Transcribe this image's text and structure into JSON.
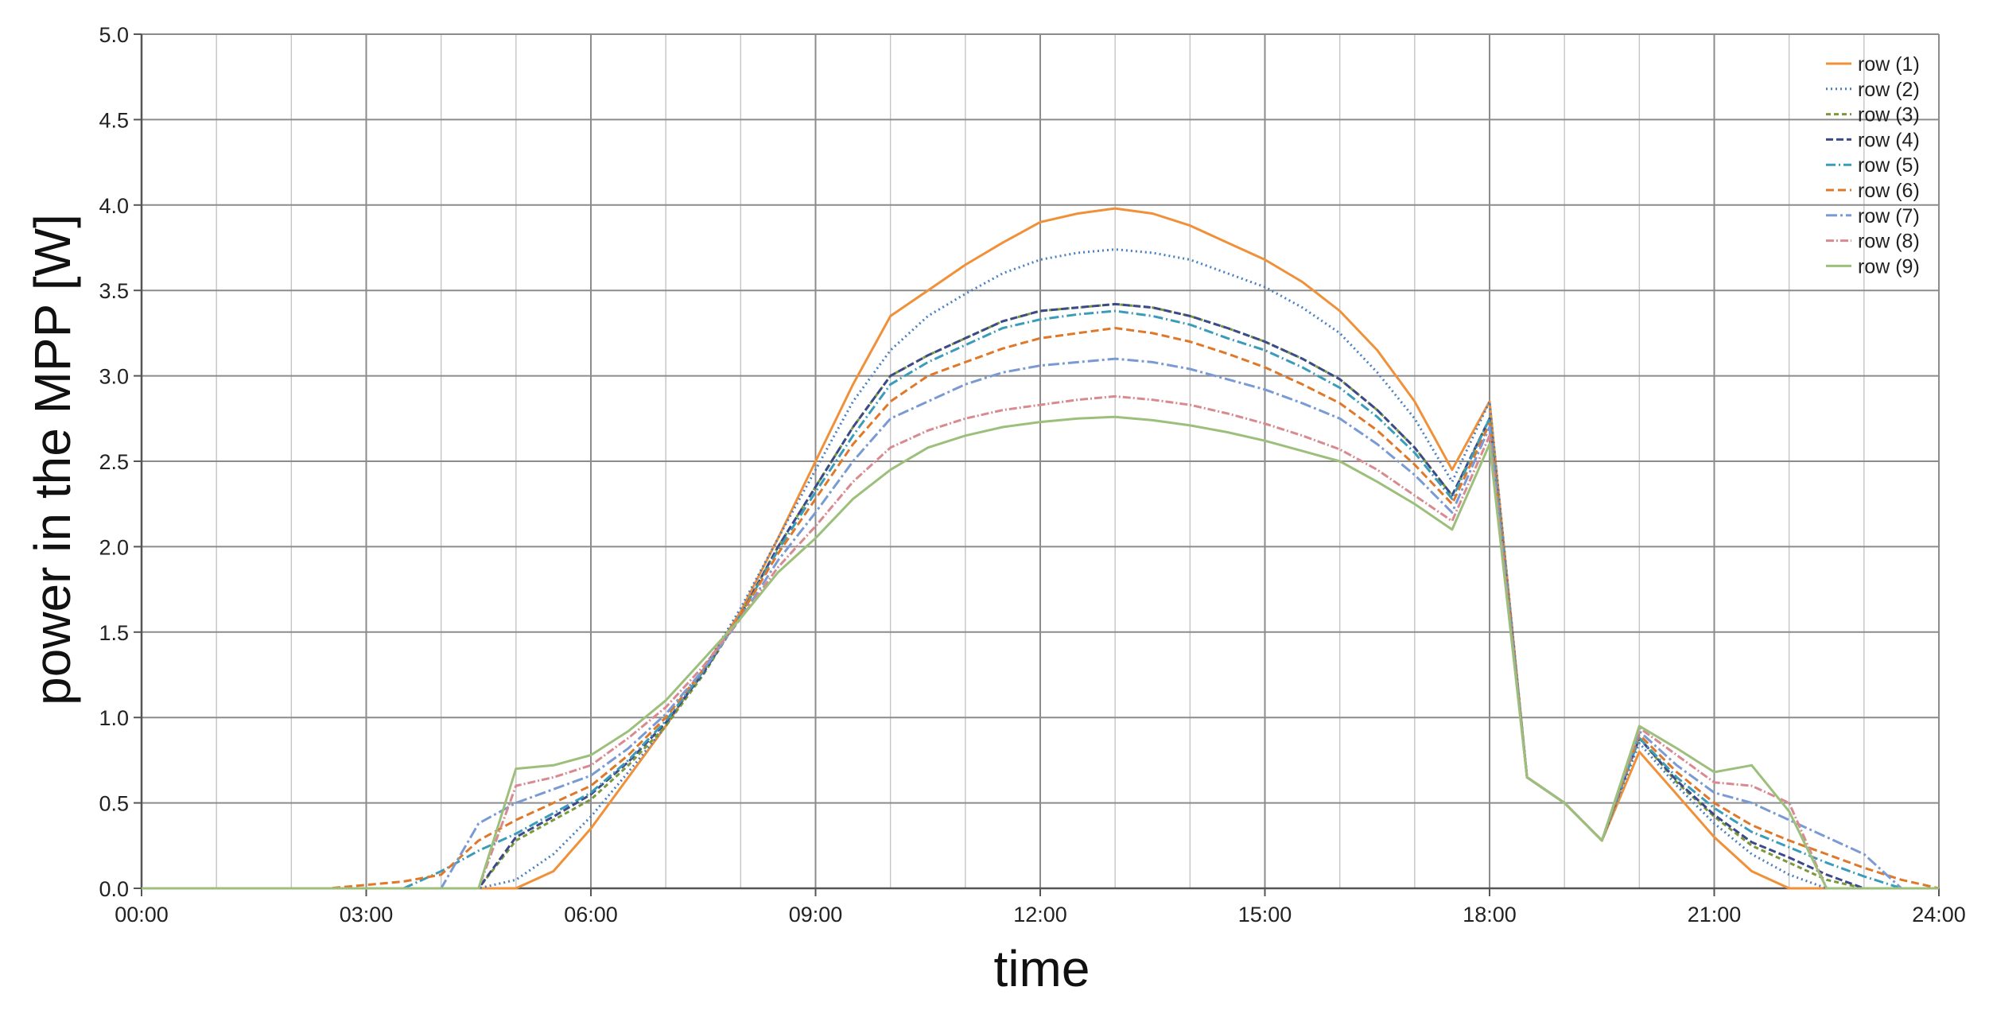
{
  "chart_data": {
    "type": "line",
    "xlabel": "time",
    "ylabel": "power in the MPP [W]",
    "x_unit": "hours",
    "xlim": [
      0,
      24
    ],
    "ylim": [
      0,
      5
    ],
    "x_tick_values": [
      0,
      3,
      6,
      9,
      12,
      15,
      18,
      21,
      24
    ],
    "x_tick_labels": [
      "00:00",
      "03:00",
      "06:00",
      "09:00",
      "12:00",
      "15:00",
      "18:00",
      "21:00",
      "24:00"
    ],
    "y_tick_values": [
      0,
      0.5,
      1,
      1.5,
      2,
      2.5,
      3,
      3.5,
      4,
      4.5,
      5
    ],
    "y_tick_labels": [
      "0.0",
      "0.5",
      "1.0",
      "1.5",
      "2.0",
      "2.5",
      "3.0",
      "3.5",
      "4.0",
      "4.5",
      "5.0"
    ],
    "grid": true,
    "legend_position": "top-right",
    "x": [
      0,
      2.5,
      3,
      3.5,
      4,
      4.5,
      5,
      5.5,
      6,
      6.5,
      7,
      7.5,
      8,
      8.5,
      9,
      9.5,
      10,
      10.5,
      11,
      11.5,
      12,
      12.5,
      13,
      13.5,
      14,
      14.5,
      15,
      15.5,
      16,
      16.5,
      17,
      17.5,
      18,
      18.5,
      19,
      19.5,
      20,
      20.5,
      21,
      21.5,
      22,
      22.5,
      23,
      23.5,
      24
    ],
    "series": [
      {
        "name": "row (1)",
        "color": "#f0913a",
        "dash": "",
        "values": [
          0,
          0,
          0,
          0,
          0,
          0,
          0,
          0.1,
          0.35,
          0.65,
          0.95,
          1.28,
          1.62,
          2.05,
          2.5,
          2.95,
          3.35,
          3.5,
          3.65,
          3.78,
          3.9,
          3.95,
          3.98,
          3.95,
          3.88,
          3.78,
          3.68,
          3.55,
          3.38,
          3.15,
          2.85,
          2.45,
          2.85,
          0.65,
          0.5,
          0.28,
          0.8,
          0.55,
          0.3,
          0.1,
          0,
          0,
          0,
          0,
          0
        ]
      },
      {
        "name": "row (2)",
        "color": "#4a7fc0",
        "dash": "2,4",
        "values": [
          0,
          0,
          0,
          0,
          0,
          0,
          0.05,
          0.2,
          0.42,
          0.68,
          0.95,
          1.28,
          1.64,
          2.05,
          2.45,
          2.85,
          3.15,
          3.35,
          3.48,
          3.6,
          3.68,
          3.72,
          3.74,
          3.72,
          3.68,
          3.6,
          3.52,
          3.4,
          3.25,
          3.02,
          2.75,
          2.38,
          2.85,
          0.65,
          0.5,
          0.28,
          0.85,
          0.6,
          0.38,
          0.2,
          0.08,
          0,
          0,
          0,
          0
        ]
      },
      {
        "name": "row (3)",
        "color": "#7a9a3a",
        "dash": "6,4",
        "values": [
          0,
          0,
          0,
          0,
          0,
          0,
          0.28,
          0.4,
          0.52,
          0.72,
          0.95,
          1.25,
          1.6,
          2.0,
          2.35,
          2.7,
          3.0,
          3.12,
          3.22,
          3.32,
          3.38,
          3.4,
          3.42,
          3.4,
          3.35,
          3.28,
          3.2,
          3.1,
          2.98,
          2.8,
          2.58,
          2.3,
          2.75,
          0.65,
          0.5,
          0.28,
          0.88,
          0.62,
          0.42,
          0.25,
          0.15,
          0.05,
          0,
          0,
          0
        ]
      },
      {
        "name": "row (4)",
        "color": "#3c4a8a",
        "dash": "9,4",
        "values": [
          0,
          0,
          0,
          0,
          0,
          0,
          0.3,
          0.42,
          0.55,
          0.74,
          0.97,
          1.26,
          1.6,
          2.0,
          2.35,
          2.7,
          3.0,
          3.12,
          3.22,
          3.32,
          3.38,
          3.4,
          3.42,
          3.4,
          3.35,
          3.28,
          3.2,
          3.1,
          2.98,
          2.8,
          2.58,
          2.3,
          2.75,
          0.65,
          0.5,
          0.28,
          0.88,
          0.63,
          0.43,
          0.27,
          0.18,
          0.08,
          0,
          0,
          0
        ]
      },
      {
        "name": "row (5)",
        "color": "#3a9cb8",
        "dash": "12,4,2,4",
        "values": [
          0,
          0,
          0,
          0,
          0.1,
          0.22,
          0.32,
          0.44,
          0.56,
          0.75,
          0.98,
          1.27,
          1.6,
          1.98,
          2.32,
          2.65,
          2.95,
          3.08,
          3.18,
          3.28,
          3.33,
          3.36,
          3.38,
          3.35,
          3.3,
          3.22,
          3.15,
          3.05,
          2.93,
          2.76,
          2.55,
          2.28,
          2.75,
          0.65,
          0.5,
          0.28,
          0.88,
          0.65,
          0.47,
          0.33,
          0.24,
          0.15,
          0.07,
          0,
          0
        ]
      },
      {
        "name": "row (6)",
        "color": "#e0782a",
        "dash": "10,5",
        "values": [
          0,
          0,
          0.02,
          0.04,
          0.08,
          0.28,
          0.4,
          0.5,
          0.6,
          0.78,
          1.0,
          1.28,
          1.6,
          1.96,
          2.28,
          2.6,
          2.85,
          3.0,
          3.08,
          3.16,
          3.22,
          3.25,
          3.28,
          3.25,
          3.2,
          3.13,
          3.05,
          2.95,
          2.84,
          2.68,
          2.48,
          2.25,
          2.72,
          0.65,
          0.5,
          0.28,
          0.9,
          0.68,
          0.5,
          0.37,
          0.28,
          0.2,
          0.12,
          0.05,
          0
        ]
      },
      {
        "name": "row (7)",
        "color": "#7a9ad4",
        "dash": "14,4,3,4",
        "values": [
          0,
          0,
          0,
          0,
          0,
          0.38,
          0.5,
          0.58,
          0.66,
          0.82,
          1.02,
          1.28,
          1.58,
          1.92,
          2.2,
          2.5,
          2.75,
          2.85,
          2.95,
          3.02,
          3.06,
          3.08,
          3.1,
          3.08,
          3.04,
          2.98,
          2.92,
          2.84,
          2.75,
          2.6,
          2.42,
          2.2,
          2.7,
          0.65,
          0.5,
          0.28,
          0.92,
          0.72,
          0.56,
          0.5,
          0.4,
          0.3,
          0.2,
          0,
          0
        ]
      },
      {
        "name": "row (8)",
        "color": "#d88a90",
        "dash": "10,3,2,3",
        "values": [
          0,
          0,
          0,
          0,
          0,
          0,
          0.6,
          0.65,
          0.72,
          0.88,
          1.06,
          1.3,
          1.58,
          1.88,
          2.12,
          2.38,
          2.58,
          2.68,
          2.75,
          2.8,
          2.83,
          2.86,
          2.88,
          2.86,
          2.83,
          2.78,
          2.72,
          2.65,
          2.57,
          2.45,
          2.3,
          2.15,
          2.65,
          0.65,
          0.5,
          0.28,
          0.94,
          0.78,
          0.62,
          0.6,
          0.5,
          0,
          0,
          0,
          0
        ]
      },
      {
        "name": "row (9)",
        "color": "#9cc07c",
        "dash": "",
        "values": [
          0,
          0,
          0,
          0,
          0,
          0,
          0.7,
          0.72,
          0.78,
          0.92,
          1.1,
          1.34,
          1.58,
          1.85,
          2.05,
          2.28,
          2.45,
          2.58,
          2.65,
          2.7,
          2.73,
          2.75,
          2.76,
          2.74,
          2.71,
          2.67,
          2.62,
          2.56,
          2.5,
          2.38,
          2.25,
          2.1,
          2.6,
          0.65,
          0.5,
          0.28,
          0.95,
          0.82,
          0.68,
          0.72,
          0.45,
          0,
          0,
          0,
          0
        ]
      }
    ]
  }
}
